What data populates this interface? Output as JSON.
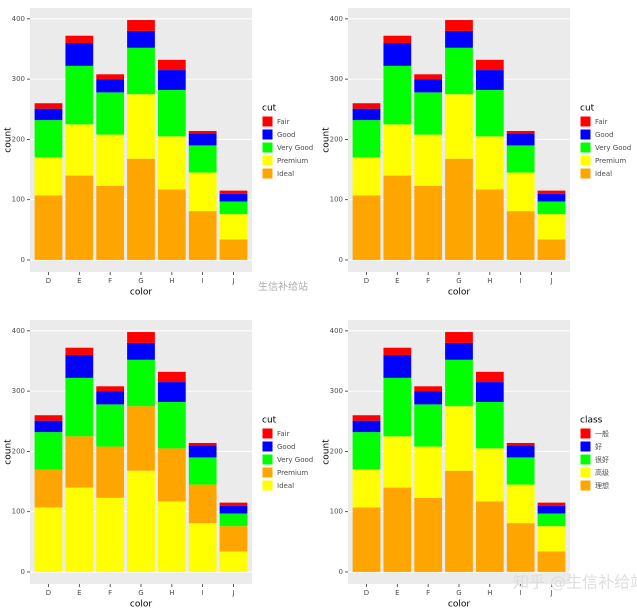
{
  "chart_data": [
    {
      "type": "bar",
      "stacked": true,
      "x_label": "color",
      "y_label": "count",
      "legend_title": "cut",
      "categories": [
        "D",
        "E",
        "F",
        "G",
        "H",
        "I",
        "J"
      ],
      "ylim": [
        -20,
        418
      ],
      "yticks": [
        0,
        100,
        200,
        300,
        400
      ],
      "series": [
        {
          "name": "Ideal",
          "color": "#ffa500",
          "values": [
            107,
            140,
            123,
            168,
            117,
            81,
            34
          ]
        },
        {
          "name": "Premium",
          "color": "#ffff00",
          "values": [
            63,
            85,
            85,
            107,
            88,
            64,
            42
          ]
        },
        {
          "name": "Very Good",
          "color": "#00ff00",
          "values": [
            62,
            97,
            70,
            77,
            77,
            45,
            21
          ]
        },
        {
          "name": "Good",
          "color": "#0000ff",
          "values": [
            19,
            38,
            22,
            28,
            33,
            20,
            13
          ]
        },
        {
          "name": "Fair",
          "color": "#ff0000",
          "values": [
            9,
            12,
            8,
            18,
            17,
            4,
            5
          ]
        }
      ]
    },
    {
      "type": "bar",
      "stacked": true,
      "x_label": "color",
      "y_label": "count",
      "legend_title": "cut",
      "categories": [
        "D",
        "E",
        "F",
        "G",
        "H",
        "I",
        "J"
      ],
      "ylim": [
        -20,
        418
      ],
      "yticks": [
        0,
        100,
        200,
        300,
        400
      ],
      "series": [
        {
          "name": "Ideal",
          "color": "#ffa500",
          "values": [
            107,
            140,
            123,
            168,
            117,
            81,
            34
          ]
        },
        {
          "name": "Premium",
          "color": "#ffff00",
          "values": [
            63,
            85,
            85,
            107,
            88,
            64,
            42
          ]
        },
        {
          "name": "Very Good",
          "color": "#00ff00",
          "values": [
            62,
            97,
            70,
            77,
            77,
            45,
            21
          ]
        },
        {
          "name": "Good",
          "color": "#0000ff",
          "values": [
            19,
            38,
            22,
            28,
            33,
            20,
            13
          ]
        },
        {
          "name": "Fair",
          "color": "#ff0000",
          "values": [
            9,
            12,
            8,
            18,
            17,
            4,
            5
          ]
        }
      ]
    },
    {
      "type": "bar",
      "stacked": true,
      "x_label": "color",
      "y_label": "count",
      "legend_title": "cut",
      "categories": [
        "D",
        "E",
        "F",
        "G",
        "H",
        "I",
        "J"
      ],
      "ylim": [
        -20,
        418
      ],
      "yticks": [
        0,
        100,
        200,
        300,
        400
      ],
      "series": [
        {
          "name": "Ideal",
          "color": "#ffff00",
          "values": [
            107,
            140,
            123,
            168,
            117,
            81,
            34
          ]
        },
        {
          "name": "Premium",
          "color": "#ffa500",
          "values": [
            63,
            85,
            85,
            107,
            88,
            64,
            42
          ]
        },
        {
          "name": "Very Good",
          "color": "#00ff00",
          "values": [
            62,
            97,
            70,
            77,
            77,
            45,
            21
          ]
        },
        {
          "name": "Good",
          "color": "#0000ff",
          "values": [
            19,
            38,
            22,
            28,
            33,
            20,
            13
          ]
        },
        {
          "name": "Fair",
          "color": "#ff0000",
          "values": [
            9,
            12,
            8,
            18,
            17,
            4,
            5
          ]
        }
      ]
    },
    {
      "type": "bar",
      "stacked": true,
      "x_label": "color",
      "y_label": "count",
      "legend_title": "class",
      "categories": [
        "D",
        "E",
        "F",
        "G",
        "H",
        "I",
        "J"
      ],
      "ylim": [
        -20,
        418
      ],
      "yticks": [
        0,
        100,
        200,
        300,
        400
      ],
      "series": [
        {
          "name": "理想",
          "color": "#ffa500",
          "values": [
            107,
            140,
            123,
            168,
            117,
            81,
            34
          ]
        },
        {
          "name": "高级",
          "color": "#ffff00",
          "values": [
            63,
            85,
            85,
            107,
            88,
            64,
            42
          ]
        },
        {
          "name": "很好",
          "color": "#00ff00",
          "values": [
            62,
            97,
            70,
            77,
            77,
            45,
            21
          ]
        },
        {
          "name": "好",
          "color": "#0000ff",
          "values": [
            19,
            38,
            22,
            28,
            33,
            20,
            13
          ]
        },
        {
          "name": "一般",
          "color": "#ff0000",
          "values": [
            9,
            12,
            8,
            18,
            17,
            4,
            5
          ]
        }
      ]
    }
  ],
  "watermarks": [
    "生信补给站",
    "知乎 @生信补给站"
  ]
}
